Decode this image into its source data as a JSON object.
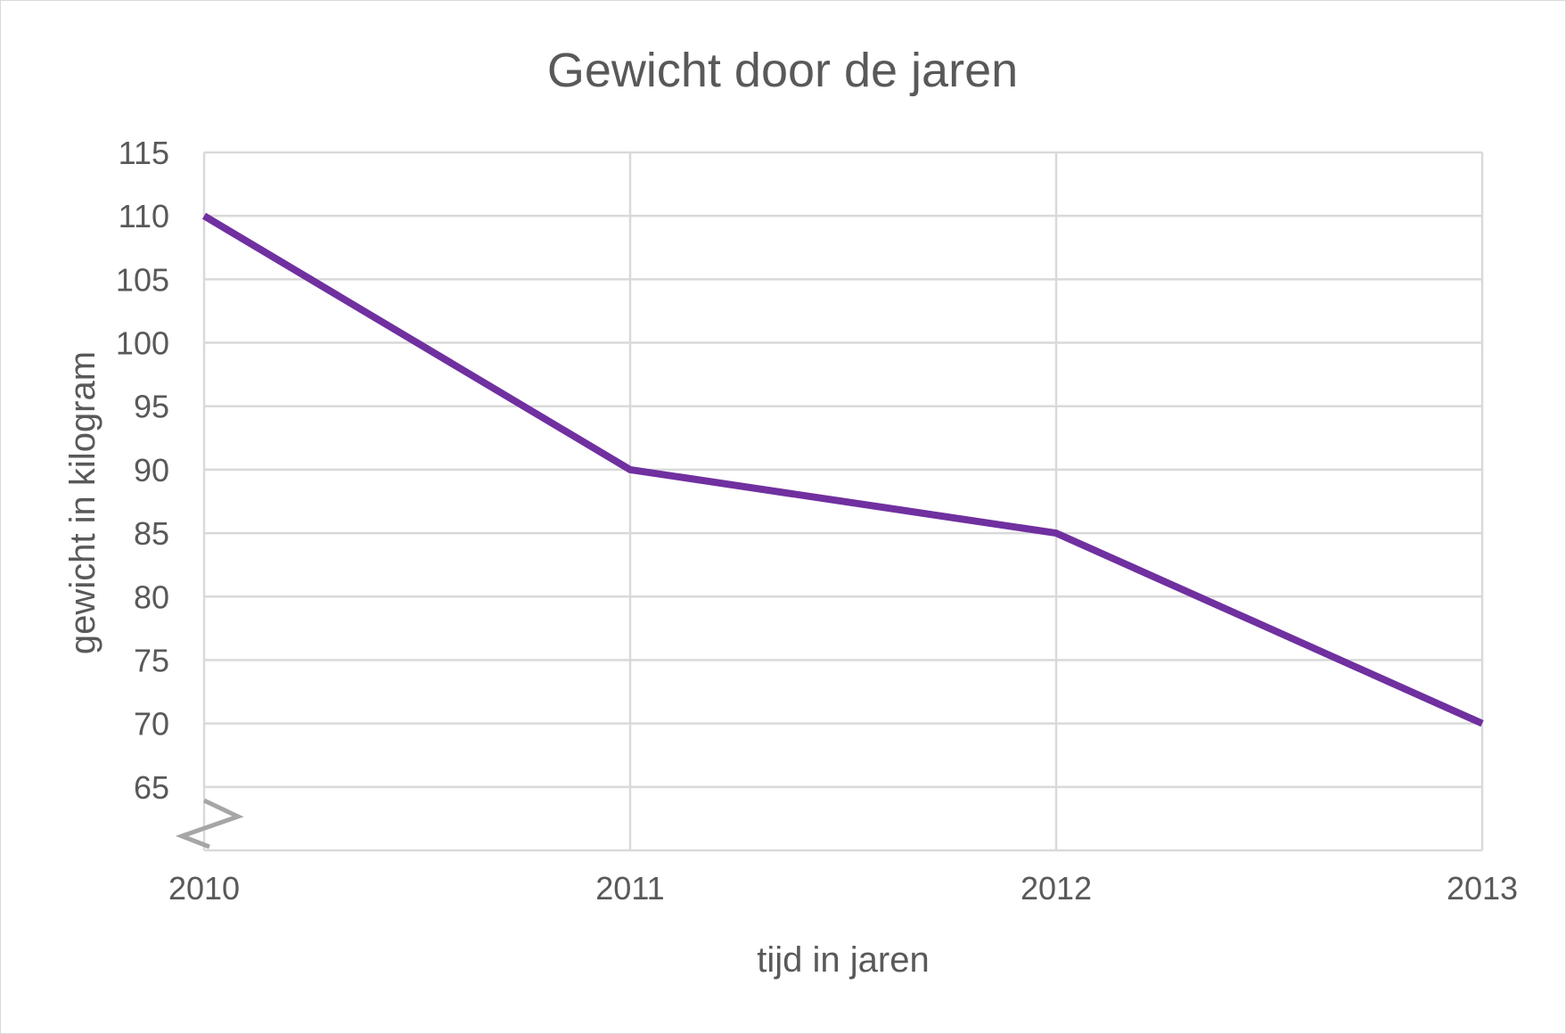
{
  "chart_data": {
    "type": "line",
    "title": "Gewicht door de jaren",
    "xlabel": "tijd in jaren",
    "ylabel": "gewicht in kilogram",
    "categories": [
      "2010",
      "2011",
      "2012",
      "2013"
    ],
    "series": [
      {
        "values": [
          110,
          90,
          85,
          70
        ],
        "color": "#7030a0"
      }
    ],
    "y_ticks": [
      65,
      70,
      75,
      80,
      85,
      90,
      95,
      100,
      105,
      110,
      115
    ],
    "ylim": [
      60,
      115
    ],
    "axis_break": true,
    "grid": true,
    "legend": "none",
    "colors": {
      "text": "#595959",
      "grid": "#d9d9d9",
      "axis_break": "#a6a6a6",
      "background": "#ffffff"
    }
  }
}
